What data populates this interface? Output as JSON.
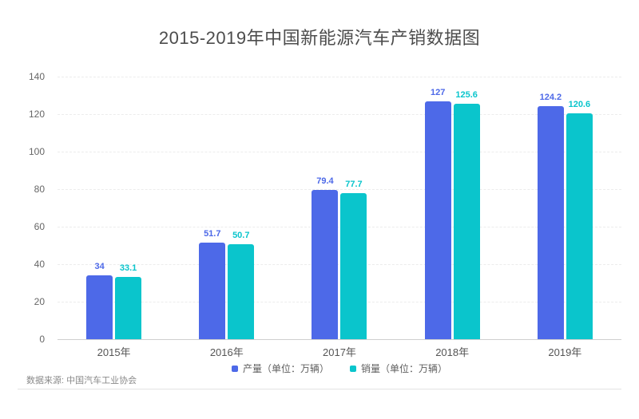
{
  "title": "2015-2019年中国新能源汽车产销数据图",
  "source_note": "数据来源: 中国汽车工业协会",
  "colors": {
    "production_blue": "#4d69e8",
    "sales_teal": "#0ac5cc",
    "grid": "#ececec",
    "axis_text": "#666666"
  },
  "legend": {
    "items": [
      {
        "label": "产量（单位：万辆）",
        "color": "#4d69e8"
      },
      {
        "label": "销量（单位：万辆）",
        "color": "#0ac5cc"
      }
    ]
  },
  "chart_data": {
    "type": "bar",
    "title": "2015-2019年中国新能源汽车产销数据图",
    "categories": [
      "2015年",
      "2016年",
      "2017年",
      "2018年",
      "2019年"
    ],
    "series": [
      {
        "name": "产量（单位：万辆）",
        "color": "#4d69e8",
        "values": [
          34,
          51.7,
          79.4,
          127,
          124.2
        ]
      },
      {
        "name": "销量（单位：万辆）",
        "color": "#0ac5cc",
        "values": [
          33.1,
          50.7,
          77.7,
          125.6,
          120.6
        ]
      }
    ],
    "xlabel": "",
    "ylabel": "",
    "ylim": [
      0,
      140
    ],
    "yticks": [
      0,
      20,
      40,
      60,
      80,
      100,
      120,
      140
    ],
    "grid": "horizontal-dashed",
    "legend_position": "bottom",
    "value_labels": true
  }
}
